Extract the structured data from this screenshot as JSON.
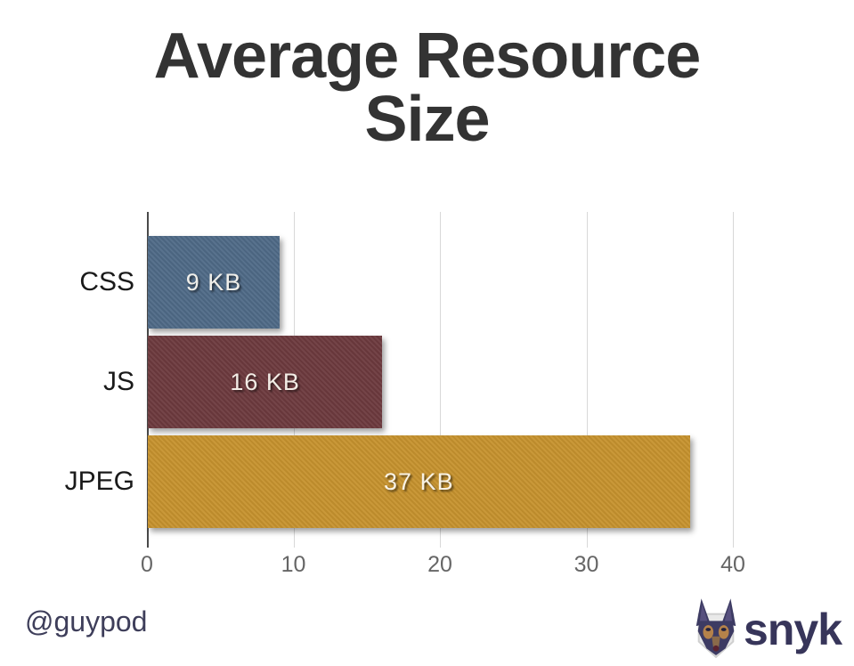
{
  "title": {
    "text": "Average Resource Size"
  },
  "chart_data": {
    "type": "bar",
    "orientation": "horizontal",
    "title": "Average Resource Size",
    "categories": [
      "CSS",
      "JS",
      "JPEG"
    ],
    "values": [
      9,
      16,
      37
    ],
    "value_labels": [
      "9 KB",
      "16 KB",
      "37 KB"
    ],
    "bar_colors": [
      "#4f6a87",
      "#6d3a3e",
      "#c6922e"
    ],
    "xlabel": "",
    "ylabel": "",
    "xlim": [
      0,
      40
    ],
    "xticks": [
      0,
      10,
      20,
      30,
      40
    ],
    "grid": true,
    "legend_position": "none"
  },
  "footer": {
    "handle": "@guypod",
    "logo_text": "snyk",
    "logo_icon": "snyk-doberman-icon"
  },
  "colors": {
    "title": "#333333",
    "axis_line": "#4a4a4a",
    "gridline": "#d8d8d8",
    "tick_label": "#666666",
    "category_label": "#1a1a1a",
    "bar_value_label": "#fffcf4",
    "handle": "#3e3e5a",
    "logo": "#37355a"
  }
}
